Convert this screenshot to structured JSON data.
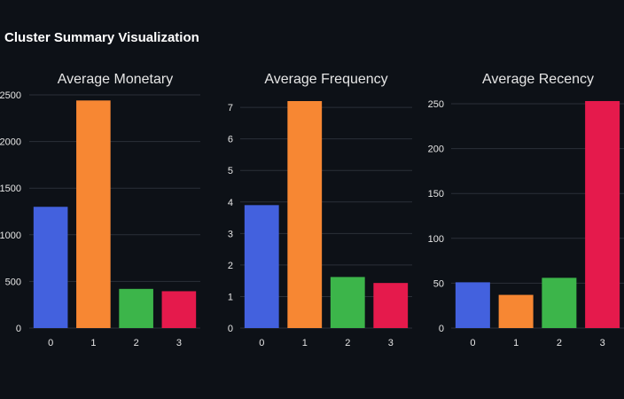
{
  "title": "Cluster Summary Visualization",
  "chart_data": [
    {
      "type": "bar",
      "title": "Average Monetary",
      "categories": [
        "0",
        "1",
        "2",
        "3"
      ],
      "values": [
        1300,
        2440,
        420,
        395
      ],
      "ylim": [
        0,
        2500
      ],
      "yticks": [
        0,
        500,
        1000,
        1500,
        2000,
        2500
      ],
      "ytick_labels": [
        "0",
        "500",
        "1000",
        "1500",
        "2000",
        "2500"
      ],
      "colors": [
        "#4361de",
        "#f78733",
        "#3cb54a",
        "#e51a4c"
      ],
      "grid": true
    },
    {
      "type": "bar",
      "title": "Average Frequency",
      "categories": [
        "0",
        "1",
        "2",
        "3"
      ],
      "values": [
        3.9,
        7.2,
        1.62,
        1.43
      ],
      "ylim": [
        0,
        7.2
      ],
      "yticks": [
        0,
        1,
        2,
        3,
        4,
        5,
        6,
        7
      ],
      "ytick_labels": [
        "0",
        "1",
        "2",
        "3",
        "4",
        "5",
        "6",
        "7"
      ],
      "colors": [
        "#4361de",
        "#f78733",
        "#3cb54a",
        "#e51a4c"
      ],
      "grid": true
    },
    {
      "type": "bar",
      "title": "Average Recency",
      "categories": [
        "0",
        "1",
        "2",
        "3"
      ],
      "values": [
        51,
        37,
        56,
        253
      ],
      "ylim": [
        0,
        250
      ],
      "yticks": [
        0,
        50,
        100,
        150,
        200,
        250
      ],
      "ytick_labels": [
        "0",
        "50",
        "100",
        "150",
        "200",
        "250"
      ],
      "colors": [
        "#4361de",
        "#f78733",
        "#3cb54a",
        "#e51a4c"
      ],
      "grid": true
    }
  ]
}
